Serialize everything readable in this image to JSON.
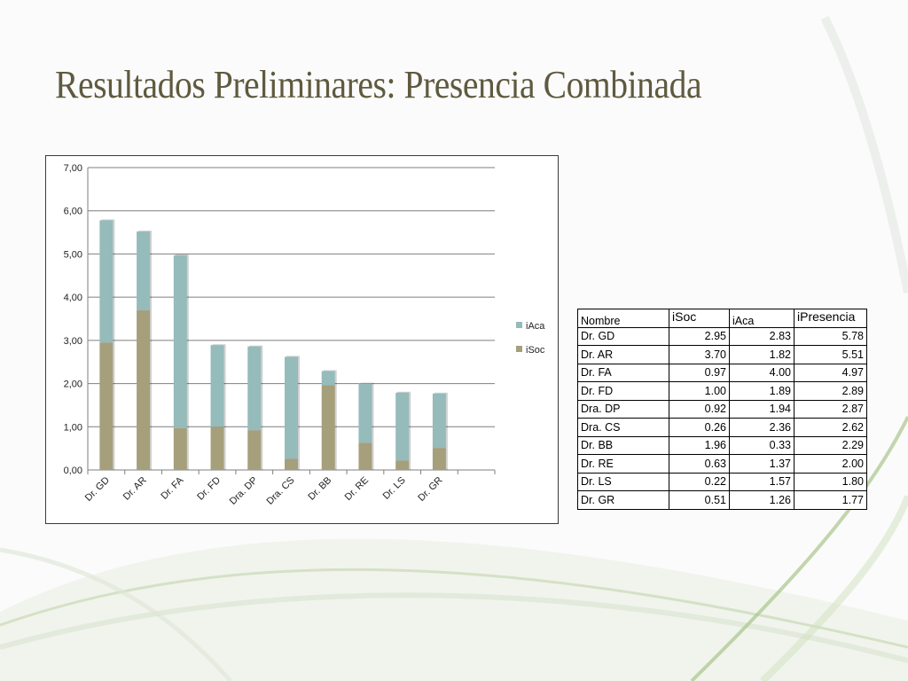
{
  "slide": {
    "title": "Resultados Preliminares: Presencia Combinada"
  },
  "colors": {
    "iAca": "#95bbbb",
    "iSoc": "#a69f7b",
    "title": "#5f5a3f",
    "grid": "#7f7f7f"
  },
  "chart_data": {
    "type": "bar",
    "stacked": true,
    "categories": [
      "Dr. GD",
      "Dr. AR",
      "Dr. FA",
      "Dr. FD",
      "Dra. DP",
      "Dra. CS",
      "Dr. BB",
      "Dr. RE",
      "Dr. LS",
      "Dr. GR"
    ],
    "series": [
      {
        "name": "iSoc",
        "values": [
          2.95,
          3.7,
          0.97,
          1.0,
          0.92,
          0.26,
          1.96,
          0.63,
          0.22,
          0.51
        ]
      },
      {
        "name": "iAca",
        "values": [
          2.83,
          1.82,
          4.0,
          1.89,
          1.94,
          2.36,
          0.33,
          1.37,
          1.57,
          1.26
        ]
      }
    ],
    "ylim": [
      0,
      7
    ],
    "yticks": [
      "0,00",
      "1,00",
      "2,00",
      "3,00",
      "4,00",
      "5,00",
      "6,00",
      "7,00"
    ],
    "legend": [
      "iAca",
      "iSoc"
    ],
    "legend_position": "right",
    "grid": true
  },
  "table": {
    "headers": [
      "Nombre",
      "iSoc",
      "iAca",
      "iPresencia"
    ],
    "rows": [
      [
        "Dr. GD",
        "2.95",
        "2.83",
        "5.78"
      ],
      [
        "Dr. AR",
        "3.70",
        "1.82",
        "5.51"
      ],
      [
        "Dr. FA",
        "0.97",
        "4.00",
        "4.97"
      ],
      [
        "Dr. FD",
        "1.00",
        "1.89",
        "2.89"
      ],
      [
        "Dra. DP",
        "0.92",
        "1.94",
        "2.87"
      ],
      [
        "Dra. CS",
        "0.26",
        "2.36",
        "2.62"
      ],
      [
        "Dr. BB",
        "1.96",
        "0.33",
        "2.29"
      ],
      [
        "Dr. RE",
        "0.63",
        "1.37",
        "2.00"
      ],
      [
        "Dr. LS",
        "0.22",
        "1.57",
        "1.80"
      ],
      [
        "Dr. GR",
        "0.51",
        "1.26",
        "1.77"
      ]
    ]
  }
}
